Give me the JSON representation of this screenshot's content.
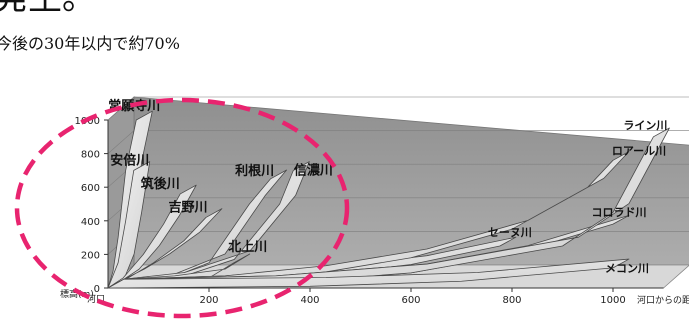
{
  "header": {
    "title_fragment": "発生。",
    "subtitle_fragment": "今後の30年以内で約70%"
  },
  "highlight": {
    "color": "#e8246f"
  },
  "chart_data": {
    "type": "line",
    "xlabel": "河口からの距離（km）",
    "ylabel": "標高(m)",
    "x_origin_label": "河口",
    "xlim": [
      0,
      1100
    ],
    "ylim": [
      0,
      1000
    ],
    "xticks": [
      200,
      400,
      600,
      800,
      1000
    ],
    "yticks": [
      0,
      200,
      400,
      600,
      800,
      1000
    ],
    "series": [
      {
        "name": "常願寺川",
        "group": "japan",
        "points": [
          [
            0,
            0
          ],
          [
            10,
            100
          ],
          [
            20,
            300
          ],
          [
            35,
            700
          ],
          [
            56,
            1000
          ]
        ]
      },
      {
        "name": "安倍川",
        "group": "japan",
        "points": [
          [
            0,
            0
          ],
          [
            20,
            150
          ],
          [
            35,
            400
          ],
          [
            51,
            700
          ]
        ]
      },
      {
        "name": "筑後川",
        "group": "japan",
        "points": [
          [
            0,
            0
          ],
          [
            30,
            60
          ],
          [
            70,
            200
          ],
          [
            110,
            380
          ],
          [
            143,
            560
          ]
        ]
      },
      {
        "name": "吉野川",
        "group": "japan",
        "points": [
          [
            0,
            0
          ],
          [
            40,
            60
          ],
          [
            90,
            150
          ],
          [
            150,
            280
          ],
          [
            194,
            420
          ]
        ]
      },
      {
        "name": "利根川",
        "group": "japan",
        "points": [
          [
            0,
            0
          ],
          [
            100,
            30
          ],
          [
            200,
            150
          ],
          [
            280,
            500
          ],
          [
            322,
            650
          ]
        ]
      },
      {
        "name": "信濃川",
        "group": "japan",
        "points": [
          [
            0,
            0
          ],
          [
            120,
            40
          ],
          [
            250,
            170
          ],
          [
            340,
            500
          ],
          [
            367,
            700
          ]
        ]
      },
      {
        "name": "北上川",
        "group": "japan",
        "points": [
          [
            0,
            0
          ],
          [
            100,
            20
          ],
          [
            200,
            60
          ],
          [
            249,
            150
          ]
        ]
      },
      {
        "name": "セーヌ川",
        "group": "world",
        "points": [
          [
            0,
            0
          ],
          [
            200,
            20
          ],
          [
            400,
            70
          ],
          [
            600,
            140
          ],
          [
            776,
            250
          ]
        ]
      },
      {
        "name": "ロアール川",
        "group": "world",
        "points": [
          [
            0,
            0
          ],
          [
            200,
            20
          ],
          [
            400,
            80
          ],
          [
            600,
            180
          ],
          [
            800,
            350
          ],
          [
            950,
            600
          ],
          [
            1000,
            760
          ]
        ]
      },
      {
        "name": "コロラド川",
        "group": "world",
        "points": [
          [
            0,
            0
          ],
          [
            300,
            20
          ],
          [
            600,
            90
          ],
          [
            800,
            200
          ],
          [
            1000,
            380
          ]
        ]
      },
      {
        "name": "ライン川",
        "group": "world",
        "points": [
          [
            0,
            0
          ],
          [
            300,
            20
          ],
          [
            600,
            90
          ],
          [
            900,
            250
          ],
          [
            1000,
            450
          ],
          [
            1080,
            900
          ]
        ]
      },
      {
        "name": "メコン川",
        "group": "world",
        "points": [
          [
            0,
            0
          ],
          [
            400,
            10
          ],
          [
            700,
            40
          ],
          [
            1000,
            120
          ]
        ]
      }
    ]
  }
}
